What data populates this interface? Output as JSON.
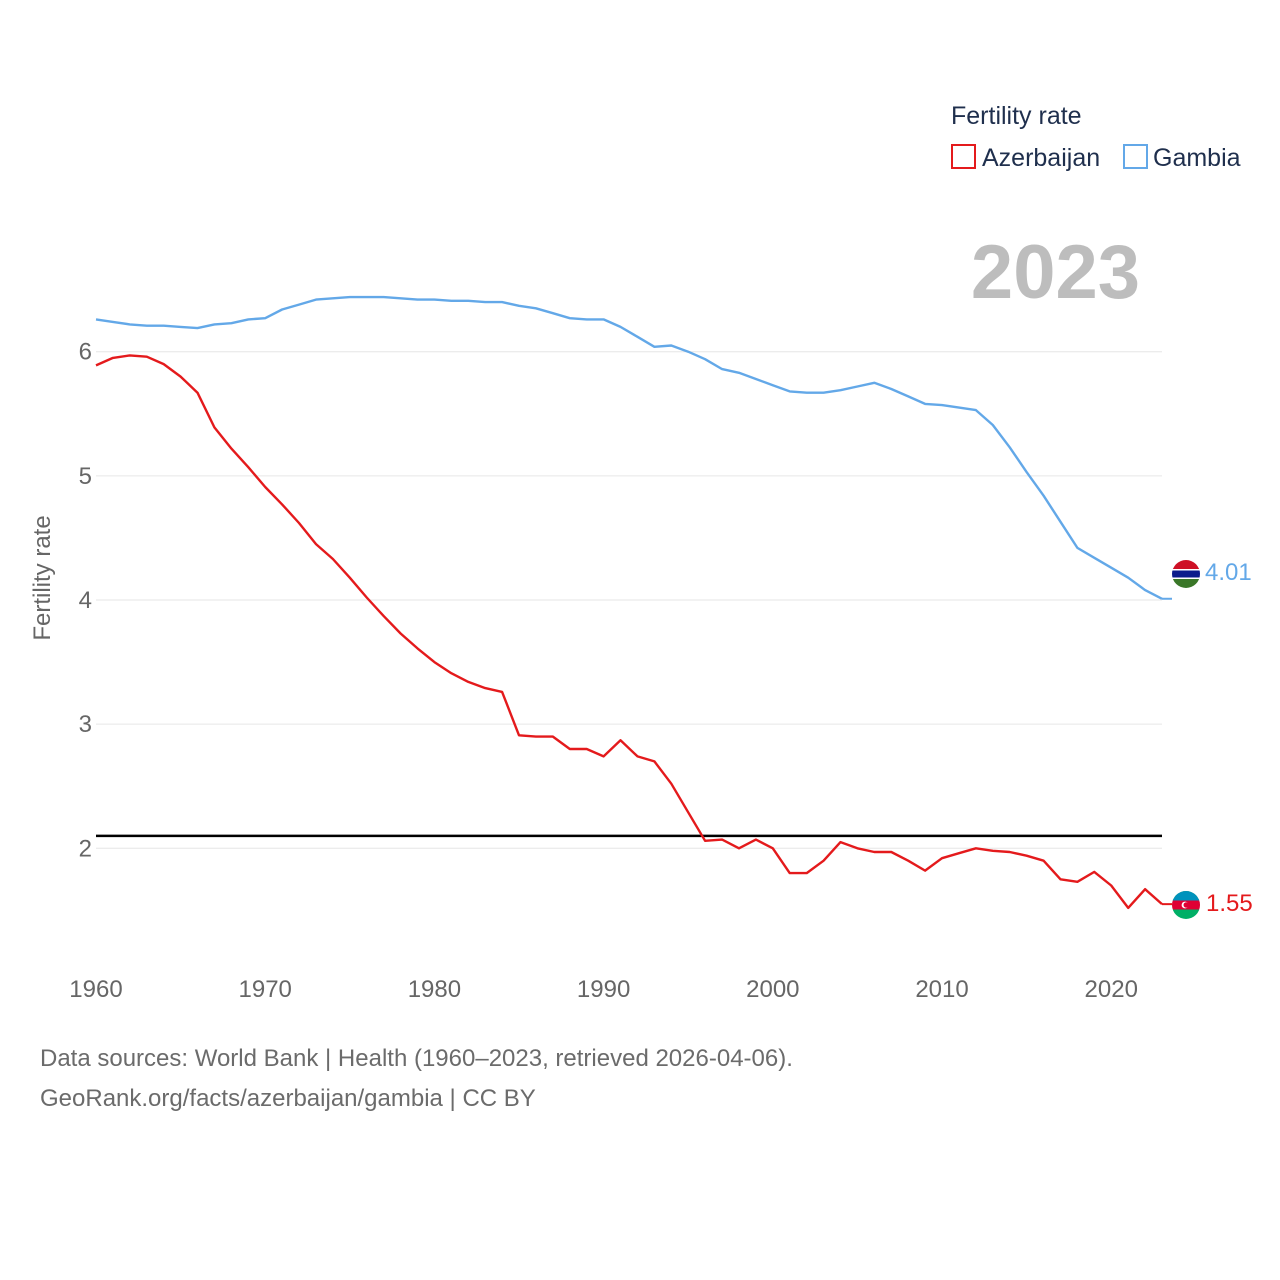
{
  "chart_data": {
    "type": "line",
    "ylabel": "Fertility rate",
    "xlabel": "",
    "xlim": [
      1960,
      2023
    ],
    "ylim": [
      1.1,
      6.9
    ],
    "yticks": [
      2,
      3,
      4,
      5,
      6
    ],
    "xticks": [
      1960,
      1970,
      1980,
      1990,
      2000,
      2010,
      2020
    ],
    "year_label": "2023",
    "legend": {
      "title": "Fertility rate",
      "placement": "top-right"
    },
    "reference_line": {
      "value": 2.1,
      "color": "#000000"
    },
    "x": [
      1960,
      1961,
      1962,
      1963,
      1964,
      1965,
      1966,
      1967,
      1968,
      1969,
      1970,
      1971,
      1972,
      1973,
      1974,
      1975,
      1976,
      1977,
      1978,
      1979,
      1980,
      1981,
      1982,
      1983,
      1984,
      1985,
      1986,
      1987,
      1988,
      1989,
      1990,
      1991,
      1992,
      1993,
      1994,
      1995,
      1996,
      1997,
      1998,
      1999,
      2000,
      2001,
      2002,
      2003,
      2004,
      2005,
      2006,
      2007,
      2008,
      2009,
      2010,
      2011,
      2012,
      2013,
      2014,
      2015,
      2016,
      2017,
      2018,
      2019,
      2020,
      2021,
      2022,
      2023
    ],
    "series": [
      {
        "name": "Azerbaijan",
        "color": "#e41a1c",
        "end_label": "1.55",
        "values": [
          5.89,
          5.95,
          5.97,
          5.96,
          5.9,
          5.8,
          5.67,
          5.39,
          5.22,
          5.07,
          4.91,
          4.77,
          4.62,
          4.45,
          4.33,
          4.18,
          4.02,
          3.87,
          3.73,
          3.61,
          3.5,
          3.41,
          3.34,
          3.29,
          3.26,
          2.91,
          2.9,
          2.9,
          2.8,
          2.8,
          2.74,
          2.87,
          2.74,
          2.7,
          2.52,
          2.29,
          2.06,
          2.07,
          2.0,
          2.07,
          2.0,
          1.8,
          1.8,
          1.9,
          2.05,
          2.0,
          1.97,
          1.97,
          1.9,
          1.82,
          1.92,
          1.96,
          2.0,
          1.98,
          1.97,
          1.94,
          1.9,
          1.75,
          1.73,
          1.81,
          1.7,
          1.52,
          1.67,
          1.55
        ]
      },
      {
        "name": "Gambia",
        "color": "#63a8e8",
        "end_label": "4.01",
        "values": [
          6.26,
          6.24,
          6.22,
          6.21,
          6.21,
          6.2,
          6.19,
          6.22,
          6.23,
          6.26,
          6.27,
          6.34,
          6.38,
          6.42,
          6.43,
          6.44,
          6.44,
          6.44,
          6.43,
          6.42,
          6.42,
          6.41,
          6.41,
          6.4,
          6.4,
          6.37,
          6.35,
          6.31,
          6.27,
          6.26,
          6.26,
          6.2,
          6.12,
          6.04,
          6.05,
          6.0,
          5.94,
          5.86,
          5.83,
          5.78,
          5.73,
          5.68,
          5.67,
          5.67,
          5.69,
          5.72,
          5.75,
          5.7,
          5.64,
          5.58,
          5.57,
          5.55,
          5.53,
          5.41,
          5.23,
          5.03,
          4.84,
          4.63,
          4.42,
          4.34,
          4.26,
          4.18,
          4.08,
          4.01
        ]
      }
    ]
  },
  "footer": {
    "line1": "Data sources: World Bank | Health (1960–2023, retrieved 2026-04-06).",
    "line2": "GeoRank.org/facts/azerbaijan/gambia | CC BY"
  }
}
